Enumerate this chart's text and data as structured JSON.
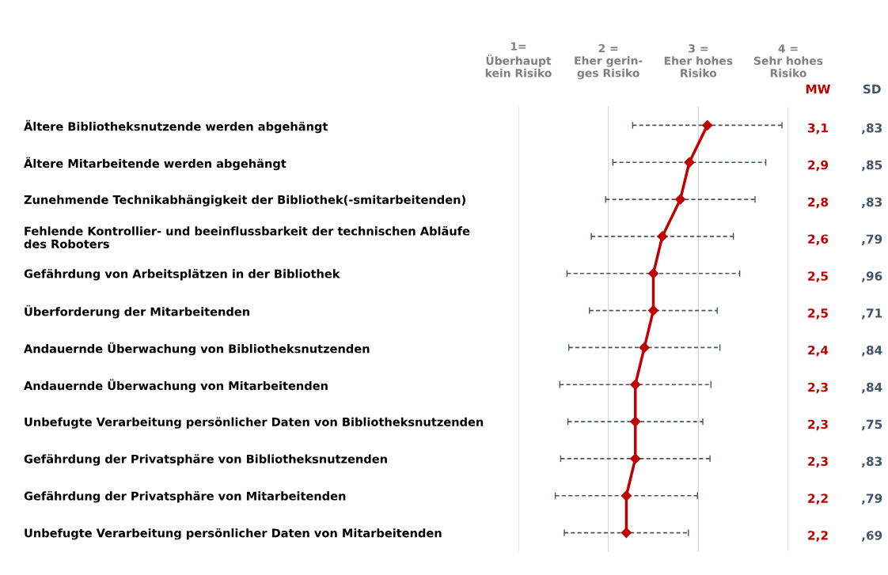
{
  "chart_data": {
    "type": "line",
    "orientation": "horizontal",
    "categories": [
      "Ältere Bibliotheksnutzende werden abgehängt",
      "Ältere Mitarbeitende werden abgehängt",
      "Zunehmende Technikabhängigkeit der Bibliothek(-smitarbeitenden)",
      "Fehlende Kontrollier- und beeinflussbarkeit der technischen Abläufe\ndes Roboters",
      "Gefährdung von Arbeitsplätzen in der Bibliothek",
      "Überforderung der Mitarbeitenden",
      "Andauernde Überwachung von Bibliotheksnutzenden",
      "Andauernde Überwachung von Mitarbeitenden",
      "Unbefugte Verarbeitung persönlicher Daten von Bibliotheksnutzenden",
      "Gefährdung der Privatsphäre von Bibliotheksnutzenden",
      "Gefährdung der Privatsphäre von Mitarbeitenden",
      "Unbefugte Verarbeitung persönlicher Daten von Mitarbeitenden"
    ],
    "values": [
      3.1,
      2.9,
      2.8,
      2.6,
      2.5,
      2.5,
      2.4,
      2.3,
      2.3,
      2.3,
      2.2,
      2.2
    ],
    "value_labels": [
      "3,1",
      "2,9",
      "2,8",
      "2,6",
      "2,5",
      "2,5",
      "2,4",
      "2,3",
      "2,3",
      "2,3",
      "2,2",
      "2,2"
    ],
    "errors": [
      0.83,
      0.85,
      0.83,
      0.79,
      0.96,
      0.71,
      0.84,
      0.84,
      0.75,
      0.83,
      0.79,
      0.69
    ],
    "color": "#c00000",
    "marker": "diamond",
    "line_style": "solid",
    "grid": "x",
    "xlim": [
      1,
      4
    ],
    "xticks": [
      {
        "value": 1,
        "label": "1=\nÜberhaupt\nkein Risiko"
      },
      {
        "value": 2,
        "label": "2 =\nEher gerin-\nges Risiko"
      },
      {
        "value": 3,
        "label": "3 =\nEher hohes\nRisiko"
      },
      {
        "value": 4,
        "label": "4 =\nSehr hohes\nRisiko"
      }
    ],
    "annotations": [
      "MW",
      "SD",
      ",83",
      ",85",
      ",83",
      ",79",
      ",96",
      ",71",
      ",84",
      ",84",
      ",75",
      ",83",
      ",79",
      ",69"
    ]
  }
}
